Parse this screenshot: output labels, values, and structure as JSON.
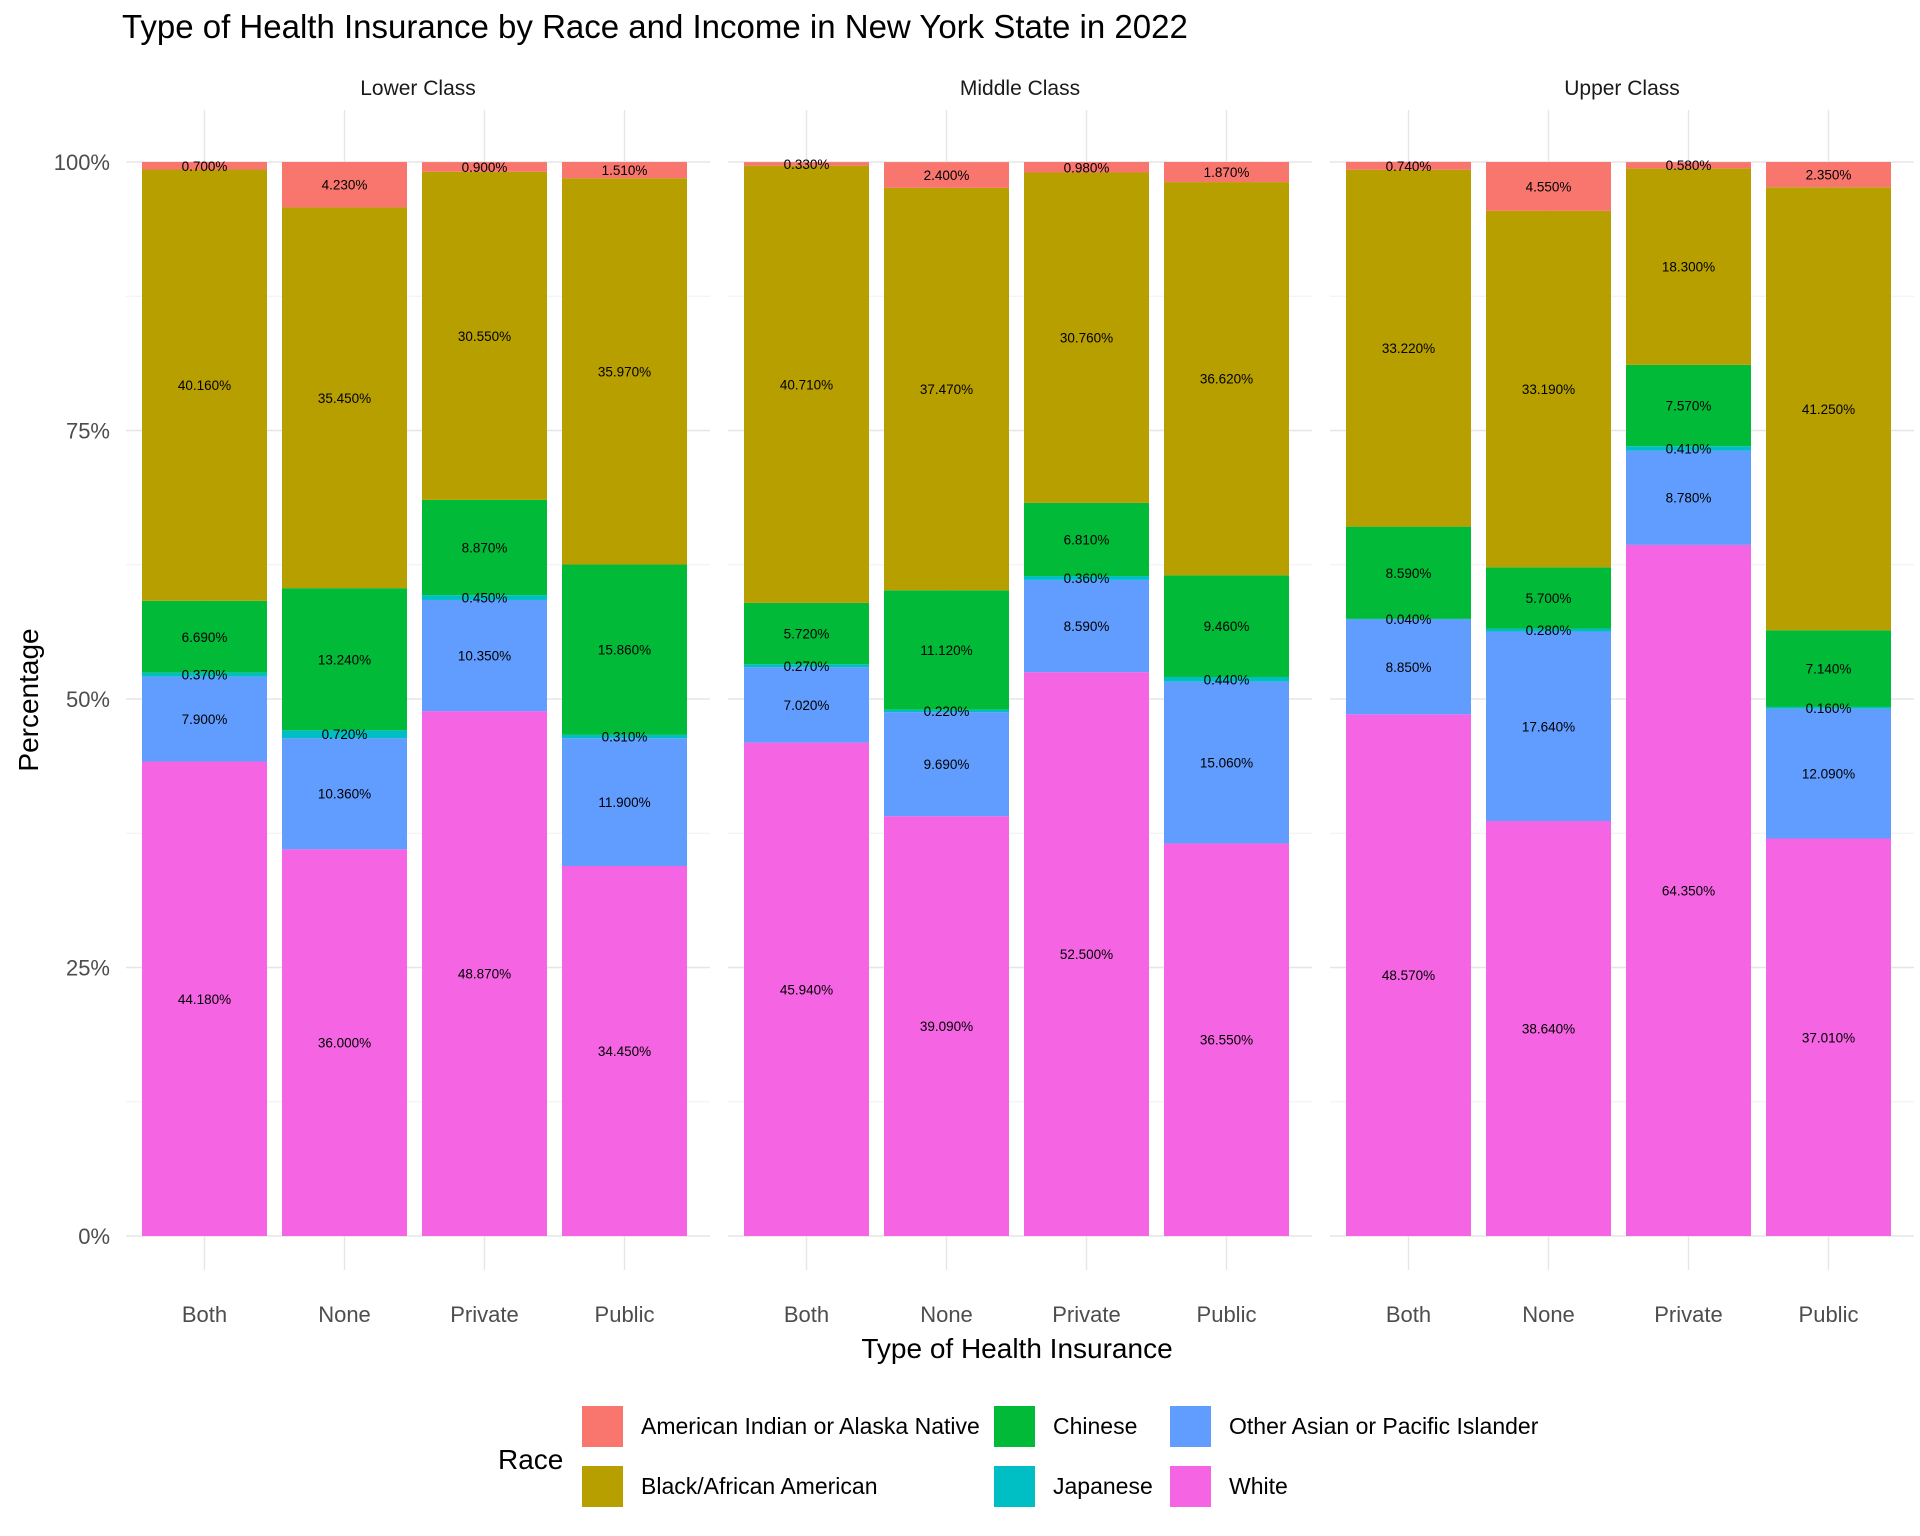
{
  "chart_data": {
    "type": "bar",
    "stacked": true,
    "title": "Type of Health Insurance by Race and Income in New York State in 2022",
    "xlabel": "Type of Health Insurance",
    "ylabel": "Percentage",
    "ylim": [
      0,
      100
    ],
    "yticks": [
      "0%",
      "25%",
      "50%",
      "75%",
      "100%"
    ],
    "grid": true,
    "legend_title": "Race",
    "legend_position": "bottom",
    "categories": [
      "Both",
      "None",
      "Private",
      "Public"
    ],
    "series": [
      {
        "name": "American Indian or Alaska Native",
        "color": "#F8766D"
      },
      {
        "name": "Black/African American",
        "color": "#B79F00"
      },
      {
        "name": "Chinese",
        "color": "#00BA38"
      },
      {
        "name": "Japanese",
        "color": "#00BFC4"
      },
      {
        "name": "Other Asian or Pacific Islander",
        "color": "#619CFF"
      },
      {
        "name": "White",
        "color": "#F564E3"
      }
    ],
    "stack_order_bottom_to_top": [
      "White",
      "Other Asian or Pacific Islander",
      "Japanese",
      "Chinese",
      "Black/African American",
      "American Indian or Alaska Native"
    ],
    "panels": [
      {
        "title": "Lower Class",
        "bars": {
          "Both": {
            "American Indian or Alaska Native": 0.7,
            "Black/African American": 40.16,
            "Chinese": 6.69,
            "Japanese": 0.37,
            "Other Asian or Pacific Islander": 7.9,
            "White": 44.18
          },
          "None": {
            "American Indian or Alaska Native": 4.23,
            "Black/African American": 35.45,
            "Chinese": 13.24,
            "Japanese": 0.72,
            "Other Asian or Pacific Islander": 10.36,
            "White": 36.0
          },
          "Private": {
            "American Indian or Alaska Native": 0.9,
            "Black/African American": 30.55,
            "Chinese": 8.87,
            "Japanese": 0.45,
            "Other Asian or Pacific Islander": 10.35,
            "White": 48.87
          },
          "Public": {
            "American Indian or Alaska Native": 1.51,
            "Black/African American": 35.97,
            "Chinese": 15.86,
            "Japanese": 0.31,
            "Other Asian or Pacific Islander": 11.9,
            "White": 34.45
          }
        }
      },
      {
        "title": "Middle Class",
        "bars": {
          "Both": {
            "American Indian or Alaska Native": 0.33,
            "Black/African American": 40.71,
            "Chinese": 5.72,
            "Japanese": 0.27,
            "Other Asian or Pacific Islander": 7.02,
            "White": 45.94
          },
          "None": {
            "American Indian or Alaska Native": 2.4,
            "Black/African American": 37.47,
            "Chinese": 11.12,
            "Japanese": 0.22,
            "Other Asian or Pacific Islander": 9.69,
            "White": 39.09
          },
          "Private": {
            "American Indian or Alaska Native": 0.98,
            "Black/African American": 30.76,
            "Chinese": 6.81,
            "Japanese": 0.36,
            "Other Asian or Pacific Islander": 8.59,
            "White": 52.5
          },
          "Public": {
            "American Indian or Alaska Native": 1.87,
            "Black/African American": 36.62,
            "Chinese": 9.46,
            "Japanese": 0.44,
            "Other Asian or Pacific Islander": 15.06,
            "White": 36.55
          }
        }
      },
      {
        "title": "Upper Class",
        "bars": {
          "Both": {
            "American Indian or Alaska Native": 0.74,
            "Black/African American": 33.22,
            "Chinese": 8.59,
            "Japanese": 0.04,
            "Other Asian or Pacific Islander": 8.85,
            "White": 48.57
          },
          "None": {
            "American Indian or Alaska Native": 4.55,
            "Black/African American": 33.19,
            "Chinese": 5.7,
            "Japanese": 0.28,
            "Other Asian or Pacific Islander": 17.64,
            "White": 38.64
          },
          "Private": {
            "American Indian or Alaska Native": 0.58,
            "Black/African American": 18.3,
            "Chinese": 7.57,
            "Japanese": 0.41,
            "Other Asian or Pacific Islander": 8.78,
            "White": 64.35
          },
          "Public": {
            "American Indian or Alaska Native": 2.35,
            "Black/African American": 41.25,
            "Chinese": 7.14,
            "Japanese": 0.16,
            "Other Asian or Pacific Islander": 12.09,
            "White": 37.01
          }
        }
      }
    ]
  }
}
